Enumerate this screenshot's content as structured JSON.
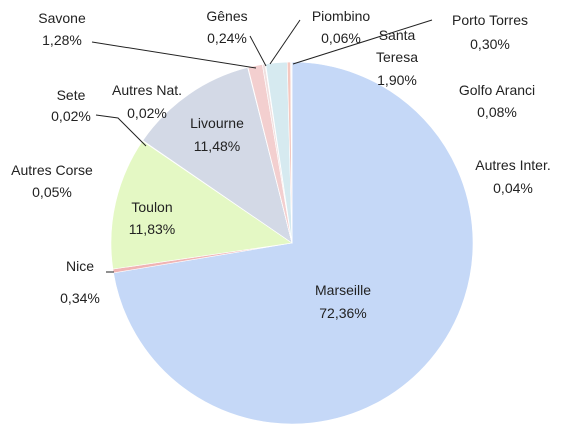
{
  "chart_data": {
    "type": "pie",
    "categories": [
      "Marseille",
      "Nice",
      "Toulon",
      "Autres Corse",
      "Livourne",
      "Sete",
      "Autres Nat.",
      "Savone",
      "Gênes",
      "Piombino",
      "Santa Teresa",
      "Porto Torres",
      "Golfo Aranci",
      "Autres Inter."
    ],
    "values": [
      72.36,
      0.34,
      11.83,
      0.05,
      11.48,
      0.02,
      0.02,
      1.28,
      0.24,
      0.06,
      1.9,
      0.3,
      0.08,
      0.04
    ],
    "value_labels": [
      "72,36%",
      "0,34%",
      "11,83%",
      "0,05%",
      "11,48%",
      "0,02%",
      "0,02%",
      "1,28%",
      "0,24%",
      "0,06%",
      "1,90%",
      "0,30%",
      "0,08%",
      "0,04%"
    ],
    "colors": [
      "#c5d8f7",
      "#f0b4b4",
      "#e4f8c4",
      "#c8e6c0",
      "#d3d9e6",
      "#e8d8b0",
      "#dcdcdc",
      "#f3cfcf",
      "#f0e0e0",
      "#cfe7e2",
      "#d6eaf0",
      "#f4c8c0",
      "#e0e8f4",
      "#e8e0f0"
    ]
  }
}
